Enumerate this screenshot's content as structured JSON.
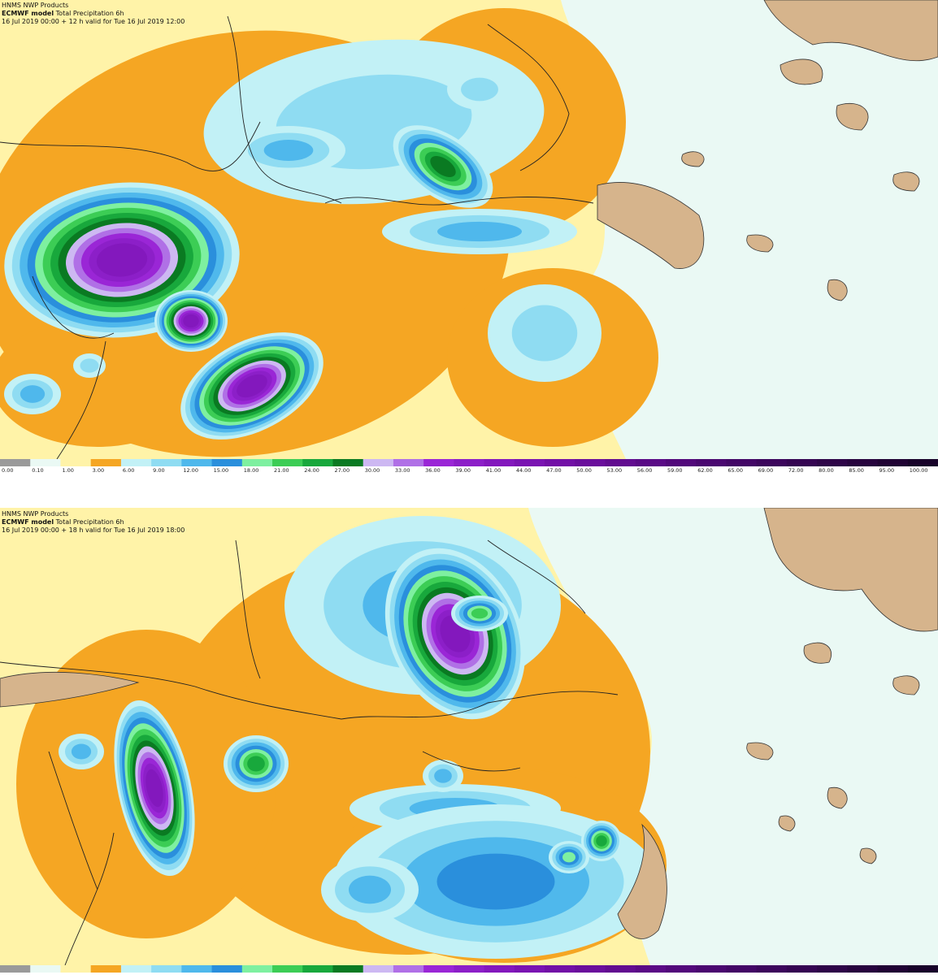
{
  "panels": [
    {
      "header": {
        "source": "HNMS NWP Products",
        "model": "ECMWF model",
        "product": "Total Precipitation 6h",
        "valid": "16 Jul 2019 00:00 + 12 h valid for Tue 16 Jul 2019 12:00"
      }
    },
    {
      "header": {
        "source": "HNMS NWP Products",
        "model": "ECMWF model",
        "product": "Total Precipitation 6h",
        "valid": "16 Jul 2019 00:00 + 18 h valid for Tue 16 Jul 2019 18:00"
      }
    }
  ],
  "legend": {
    "labels": [
      "0.00",
      "0.10",
      "1.00",
      "3.00",
      "6.00",
      "9.00",
      "12.00",
      "15.00",
      "18.00",
      "21.00",
      "24.00",
      "27.00",
      "30.00",
      "33.00",
      "36.00",
      "39.00",
      "41.00",
      "44.00",
      "47.00",
      "50.00",
      "53.00",
      "56.00",
      "59.00",
      "62.00",
      "65.00",
      "69.00",
      "72.00",
      "80.00",
      "85.00",
      "95.00",
      "100.00"
    ],
    "colors": [
      "#9a9a9a",
      "#eaf9f4",
      "#fff3a8",
      "#f5a623",
      "#c2f1f6",
      "#8fdcf2",
      "#4fb8ec",
      "#2a8fdc",
      "#7ef0a0",
      "#3ccd55",
      "#18a83c",
      "#0a7a22",
      "#cdb8f2",
      "#b070e6",
      "#9a26d6",
      "#8c1fc8",
      "#8318bd",
      "#7a14b2",
      "#7210a6",
      "#6a0e9c",
      "#620c90",
      "#5a0a86",
      "#52087b",
      "#4a0770",
      "#430666",
      "#3c055c",
      "#350452",
      "#2e0448",
      "#27033e",
      "#200234",
      "#18022a"
    ]
  }
}
